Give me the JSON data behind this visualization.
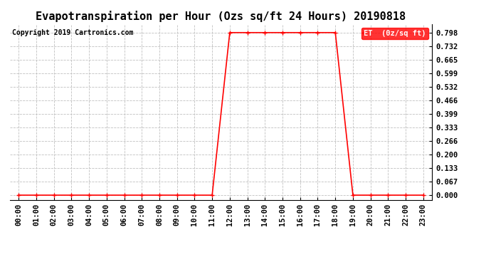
{
  "title": "Evapotranspiration per Hour (Ozs sq/ft 24 Hours) 20190818",
  "copyright": "Copyright 2019 Cartronics.com",
  "legend_label": "ET  (0z/sq ft)",
  "line_color": "#ff0000",
  "background_color": "#ffffff",
  "grid_color": "#c0c0c0",
  "x_hours": [
    0,
    1,
    2,
    3,
    4,
    5,
    6,
    7,
    8,
    9,
    10,
    11,
    12,
    13,
    14,
    15,
    16,
    17,
    18,
    19,
    20,
    21,
    22,
    23
  ],
  "y_values": [
    0.0,
    0.0,
    0.0,
    0.0,
    0.0,
    0.0,
    0.0,
    0.0,
    0.0,
    0.0,
    0.0,
    0.0,
    0.798,
    0.798,
    0.798,
    0.798,
    0.798,
    0.798,
    0.798,
    0.0,
    0.0,
    0.0,
    0.0,
    0.0
  ],
  "yticks": [
    0.0,
    0.067,
    0.133,
    0.2,
    0.266,
    0.333,
    0.399,
    0.466,
    0.532,
    0.599,
    0.665,
    0.732,
    0.798
  ],
  "ylim": [
    -0.025,
    0.84
  ],
  "xlim": [
    -0.5,
    23.5
  ],
  "title_fontsize": 11,
  "copyright_fontsize": 7,
  "tick_fontsize": 7.5,
  "legend_bg_color": "#ff0000",
  "legend_text_color": "#ffffff",
  "marker": "+",
  "marker_size": 4,
  "line_width": 1.2
}
